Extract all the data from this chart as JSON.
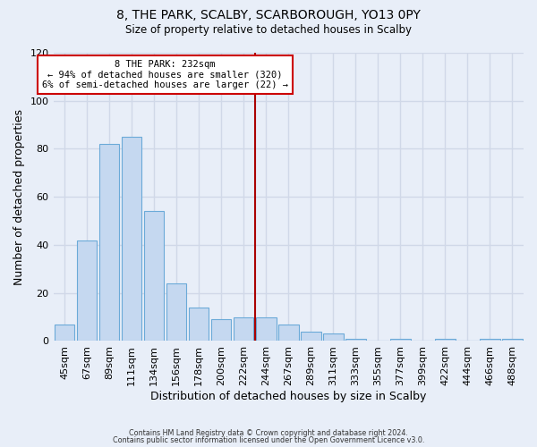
{
  "title1": "8, THE PARK, SCALBY, SCARBOROUGH, YO13 0PY",
  "title2": "Size of property relative to detached houses in Scalby",
  "xlabel": "Distribution of detached houses by size in Scalby",
  "ylabel": "Number of detached properties",
  "bar_labels": [
    "45sqm",
    "67sqm",
    "89sqm",
    "111sqm",
    "134sqm",
    "156sqm",
    "178sqm",
    "200sqm",
    "222sqm",
    "244sqm",
    "267sqm",
    "289sqm",
    "311sqm",
    "333sqm",
    "355sqm",
    "377sqm",
    "399sqm",
    "422sqm",
    "444sqm",
    "466sqm",
    "488sqm"
  ],
  "bar_values": [
    7,
    42,
    82,
    85,
    54,
    24,
    14,
    9,
    10,
    10,
    7,
    4,
    3,
    1,
    0,
    1,
    0,
    1,
    0,
    1,
    1
  ],
  "bar_color": "#c5d8f0",
  "bar_edge_color": "#6baad8",
  "vline_color": "#aa0000",
  "annotation_title": "8 THE PARK: 232sqm",
  "annotation_line1": "← 94% of detached houses are smaller (320)",
  "annotation_line2": "6% of semi-detached houses are larger (22) →",
  "annotation_box_color": "#ffffff",
  "annotation_box_edge": "#cc0000",
  "ylim": [
    0,
    120
  ],
  "yticks": [
    0,
    20,
    40,
    60,
    80,
    100,
    120
  ],
  "footer1": "Contains HM Land Registry data © Crown copyright and database right 2024.",
  "footer2": "Contains public sector information licensed under the Open Government Licence v3.0.",
  "background_color": "#e8eef8"
}
